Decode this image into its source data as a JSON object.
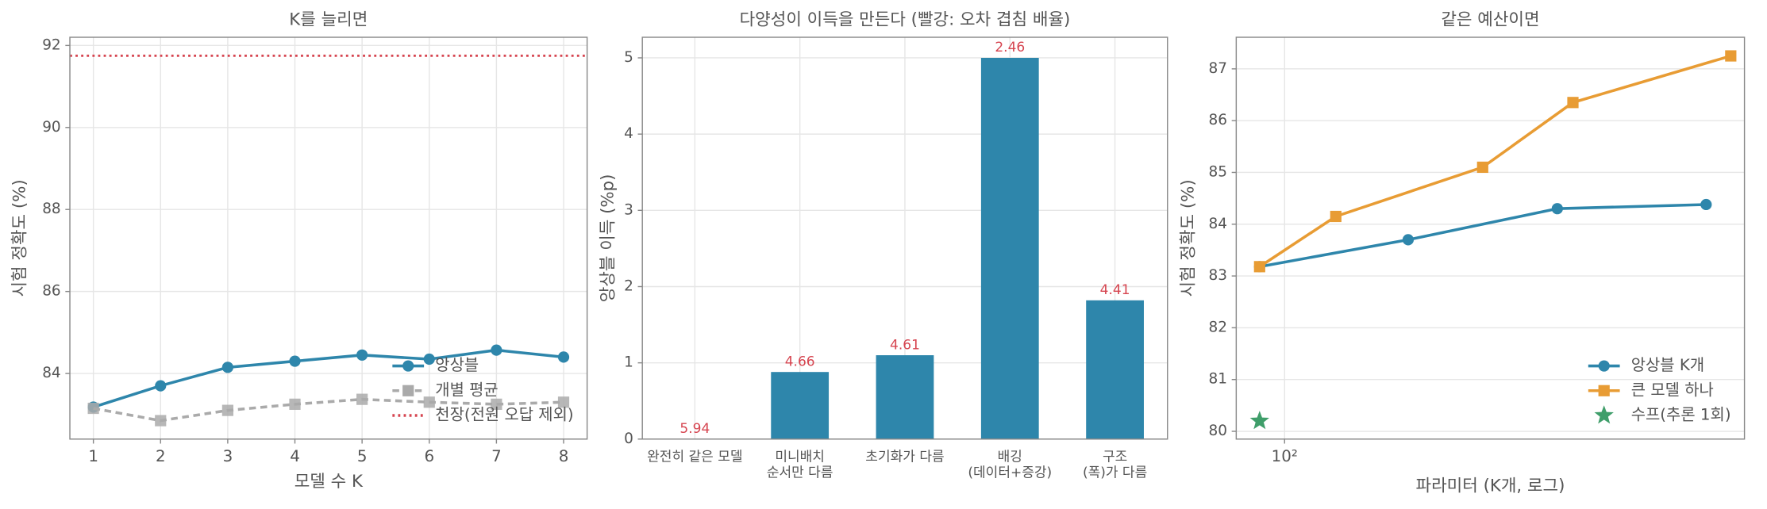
{
  "chart_data": [
    {
      "type": "line",
      "title": "K를 늘리면",
      "xlabel": "모델 수 K",
      "ylabel": "시험 정확도 (%)",
      "x": [
        1,
        2,
        3,
        4,
        5,
        6,
        7,
        8
      ],
      "xlim": [
        0.65,
        8.35
      ],
      "xticks": [
        1,
        2,
        3,
        4,
        5,
        6,
        7,
        8
      ],
      "ylim": [
        82.4,
        92.2
      ],
      "yticks": [
        84,
        86,
        88,
        90,
        92
      ],
      "grid": true,
      "legend": "lower right",
      "series": [
        {
          "name": "앙상블",
          "color": "#2e86ab",
          "marker": "circle",
          "linestyle": "solid",
          "values": [
            83.18,
            83.7,
            84.15,
            84.3,
            84.45,
            84.35,
            84.57,
            84.4
          ]
        },
        {
          "name": "개별 평균",
          "color": "#aaaaaa",
          "marker": "square",
          "linestyle": "dashed",
          "values": [
            83.15,
            82.85,
            83.1,
            83.25,
            83.37,
            83.3,
            83.25,
            83.3
          ]
        },
        {
          "name": "천장(전원 오답 제외)",
          "color": "#d64550",
          "linestyle": "dotted",
          "hline": 91.75
        }
      ]
    },
    {
      "type": "bar",
      "title": "다양성이 이득을 만든다 (빨강: 오차 겹침 배율)",
      "ylabel": "앙상블 이득 (%p)",
      "categories": [
        "완전히 같은 모델",
        "미니배치\n순서만 다름",
        "초기화가 다름",
        "배깅\n(데이터+증강)",
        "구조\n(폭)가 다름"
      ],
      "values": [
        0,
        0.88,
        1.1,
        5.0,
        1.82
      ],
      "color": "#2e86ab",
      "annotations": [
        5.94,
        4.66,
        4.61,
        2.46,
        4.41
      ],
      "annotation_color": "#d64550",
      "ylim": [
        0,
        5.27
      ],
      "yticks": [
        0,
        1,
        2,
        3,
        4,
        5
      ],
      "grid": true
    },
    {
      "type": "line",
      "title": "같은 예산이면",
      "xlabel": "파라미터 (K개, 로그)",
      "ylabel": "시험 정확도 (%)",
      "xscale": "log",
      "xlim": [
        79.8,
        855
      ],
      "xticks": [
        {
          "value": 100,
          "label": "10²"
        }
      ],
      "ylim": [
        79.85,
        87.61
      ],
      "yticks": [
        80,
        81,
        82,
        83,
        84,
        85,
        86,
        87
      ],
      "grid": true,
      "legend": "lower right",
      "series": [
        {
          "name": "앙상블 K개",
          "color": "#2e86ab",
          "marker": "circle",
          "linestyle": "solid",
          "x": [
            89,
            178,
            357,
            715
          ],
          "values": [
            83.18,
            83.7,
            84.3,
            84.38
          ]
        },
        {
          "name": "큰 모델 하나",
          "color": "#e89c34",
          "marker": "square",
          "linestyle": "solid",
          "x": [
            89,
            127,
            252,
            384,
            802
          ],
          "values": [
            83.18,
            84.15,
            85.1,
            86.35,
            87.25
          ]
        },
        {
          "name": "수프(추론 1회)",
          "color": "#3f9e6a",
          "marker": "star",
          "linestyle": "none",
          "x": [
            89
          ],
          "values": [
            80.2
          ]
        }
      ]
    }
  ]
}
